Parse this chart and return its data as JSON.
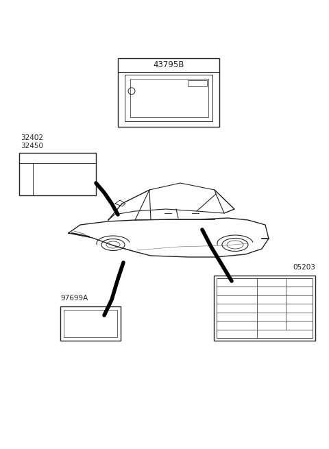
{
  "bg_color": "#ffffff",
  "line_color": "#222222",
  "label_43795B": "43795B",
  "label_32402": "32402",
  "label_32450": "32450",
  "label_97699A": "97699A",
  "label_05203": "05203",
  "font_size_label": 7.5,
  "font_size_part": 6.5
}
